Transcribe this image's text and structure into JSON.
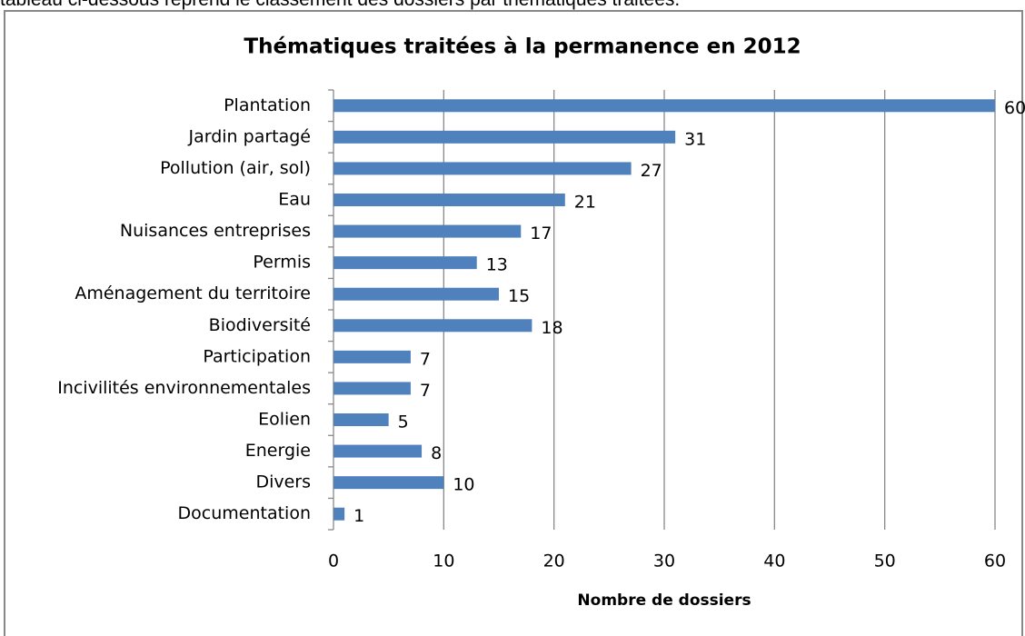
{
  "document_text": "tableau ci-dessous reprend le classement des dossiers par thématiques traitées.",
  "chart_data": {
    "type": "barh",
    "title": "Thématiques traitées à la permanence en 2012",
    "x_label": "Nombre de dossiers",
    "categories": [
      "Plantation",
      "Jardin partagé",
      "Pollution (air, sol)",
      "Eau",
      "Nuisances entreprises",
      "Permis",
      "Aménagement du territoire",
      "Biodiversité",
      "Participation",
      "Incivilités environnementales",
      "Eolien",
      "Energie",
      "Divers",
      "Documentation"
    ],
    "values": [
      60,
      31,
      27,
      21,
      17,
      13,
      15,
      18,
      7,
      7,
      5,
      8,
      10,
      1
    ],
    "color": "#4f81bd",
    "xlim": [
      0,
      60
    ],
    "xticks": [
      0,
      10,
      20,
      30,
      40,
      50,
      60
    ],
    "grid": true
  }
}
